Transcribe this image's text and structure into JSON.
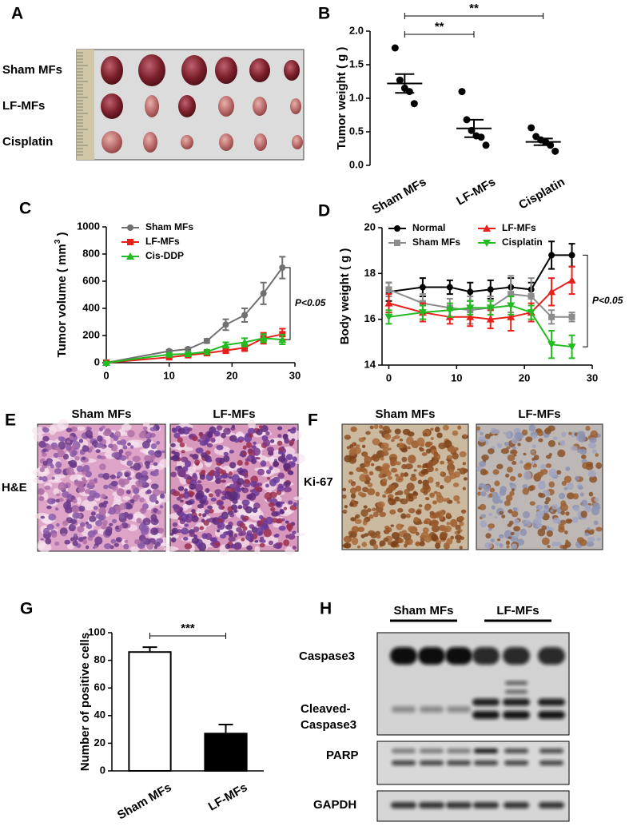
{
  "panel_a": {
    "label": "A",
    "row_labels": [
      "Sham MFs",
      "LF-MFs",
      "Cisplatin"
    ]
  },
  "chart_data": [
    {
      "panel": "B",
      "type": "dot",
      "y_label": "Tumor weight ( g )",
      "categories": [
        "Sham MFs",
        "LF-MFs",
        "Cisplatin"
      ],
      "points": [
        [
          1.75,
          1.27,
          1.15,
          1.1,
          0.92
        ],
        [
          1.1,
          0.68,
          0.52,
          0.44,
          0.42,
          0.3
        ],
        [
          0.56,
          0.43,
          0.38,
          0.35,
          0.3,
          0.21
        ]
      ],
      "means": [
        1.22,
        0.55,
        0.35
      ],
      "sem": [
        0.14,
        0.13,
        0.05
      ],
      "color": "#000000",
      "ylim": [
        0,
        2
      ],
      "yticks": [
        {
          "value": 0,
          "label": "0.0"
        },
        0.5,
        {
          "value": 1,
          "label": "1.0"
        },
        1.5,
        {
          "value": 2,
          "label": "2.0"
        }
      ],
      "significance": [
        {
          "text": "**",
          "from": "Sham MFs",
          "to": "LF-MFs"
        },
        {
          "text": "**",
          "from": "Sham MFs",
          "to": "Cisplatin"
        }
      ]
    },
    {
      "panel": "C",
      "type": "line",
      "y_label": "Tumor volume ( mm",
      "y_label_sup": "3",
      "y_label_end": " )",
      "x": [
        0,
        10,
        13,
        16,
        19,
        22,
        25,
        28
      ],
      "series": [
        {
          "name": "Sham MFs",
          "color": "#707070",
          "marker": "circle",
          "values": [
            0,
            85,
            100,
            160,
            280,
            350,
            510,
            700
          ],
          "errors": [
            5,
            10,
            10,
            15,
            40,
            50,
            80,
            80
          ]
        },
        {
          "name": "LF-MFs",
          "color": "#e8201c",
          "marker": "square",
          "values": [
            0,
            40,
            55,
            70,
            90,
            110,
            180,
            210
          ],
          "errors": [
            5,
            10,
            10,
            15,
            20,
            25,
            40,
            40
          ]
        },
        {
          "name": "Cis-DDP",
          "color": "#22bb22",
          "marker": "triangle-up",
          "values": [
            0,
            60,
            65,
            80,
            130,
            150,
            180,
            170
          ],
          "errors": [
            5,
            10,
            10,
            15,
            20,
            30,
            30,
            35
          ]
        }
      ],
      "xlim": [
        0,
        30
      ],
      "xticks": [
        0,
        10,
        20,
        30
      ],
      "ylim": [
        0,
        1000
      ],
      "yticks": [
        0,
        200,
        400,
        600,
        800,
        1000
      ],
      "legend": "upper left",
      "legend_columns": 1,
      "annotation": "P<0.05"
    },
    {
      "panel": "D",
      "type": "line",
      "y_label": "Body weight ( g )",
      "x": [
        0,
        5,
        9,
        12,
        15,
        18,
        21,
        24,
        27
      ],
      "series": [
        {
          "name": "Normal",
          "color": "#000000",
          "marker": "circle",
          "values": [
            17.2,
            17.4,
            17.4,
            17.2,
            17.3,
            17.4,
            17.3,
            18.8,
            18.8
          ],
          "errors": [
            0.4,
            0.4,
            0.3,
            0.4,
            0.4,
            0.4,
            0.3,
            0.6,
            0.5
          ]
        },
        {
          "name": "Sham MFs",
          "color": "#8c8c8c",
          "marker": "square",
          "values": [
            17.3,
            16.7,
            16.5,
            16.4,
            16.5,
            17.1,
            17,
            16.1,
            16.1
          ],
          "errors": [
            0.3,
            0.4,
            0.4,
            0.6,
            0.5,
            0.8,
            0.8,
            0.3,
            0.2
          ]
        },
        {
          "name": "LF-MFs",
          "color": "#e8201c",
          "marker": "triangle-up",
          "values": [
            16.7,
            16.3,
            16.1,
            16.1,
            16,
            16.1,
            16.3,
            17.2,
            17.7
          ],
          "errors": [
            0.4,
            0.4,
            0.3,
            0.4,
            0.4,
            0.6,
            0.4,
            0.6,
            0.6
          ]
        },
        {
          "name": "Cisplatin",
          "color": "#22bb22",
          "marker": "triangle-down",
          "values": [
            16.1,
            16.3,
            16.4,
            16.5,
            16.5,
            16.6,
            16.3,
            14.9,
            14.8
          ],
          "errors": [
            0.3,
            0.3,
            0.3,
            0.3,
            0.3,
            0.4,
            0.3,
            0.6,
            0.5
          ]
        }
      ],
      "xlim": [
        -1,
        30
      ],
      "xticks": [
        0,
        10,
        20,
        30
      ],
      "ylim": [
        14,
        20
      ],
      "yticks": [
        14,
        16,
        18,
        20
      ],
      "legend": "upper left",
      "legend_columns": 2,
      "annotation": "P<0.05"
    },
    {
      "panel": "G",
      "type": "bar",
      "y_label": "Number of positive cells",
      "categories": [
        "Sham MFs",
        "LF-MFs"
      ],
      "values": [
        86,
        27
      ],
      "errors": [
        3.5,
        6.5
      ],
      "colors": [
        "#ffffff",
        "#000000"
      ],
      "ylim": [
        0,
        100
      ],
      "yticks": [
        0,
        20,
        40,
        60,
        80,
        100
      ],
      "significance": [
        {
          "text": "***",
          "from": "Sham MFs",
          "to": "LF-MFs"
        }
      ]
    }
  ],
  "panel_e": {
    "label": "E",
    "column_labels": [
      "Sham MFs",
      "LF-MFs"
    ],
    "row_label": "H&E"
  },
  "panel_f": {
    "label": "F",
    "column_labels": [
      "Sham MFs",
      "LF-MFs"
    ],
    "row_label": "Ki-67"
  },
  "panel_h": {
    "label": "H",
    "groups": [
      "Sham MFs",
      "LF-MFs"
    ],
    "row_labels": [
      "Caspase3",
      "PARP",
      "GAPDH"
    ],
    "cleaved_label_lines": [
      "Cleaved-",
      "Caspase3"
    ]
  }
}
